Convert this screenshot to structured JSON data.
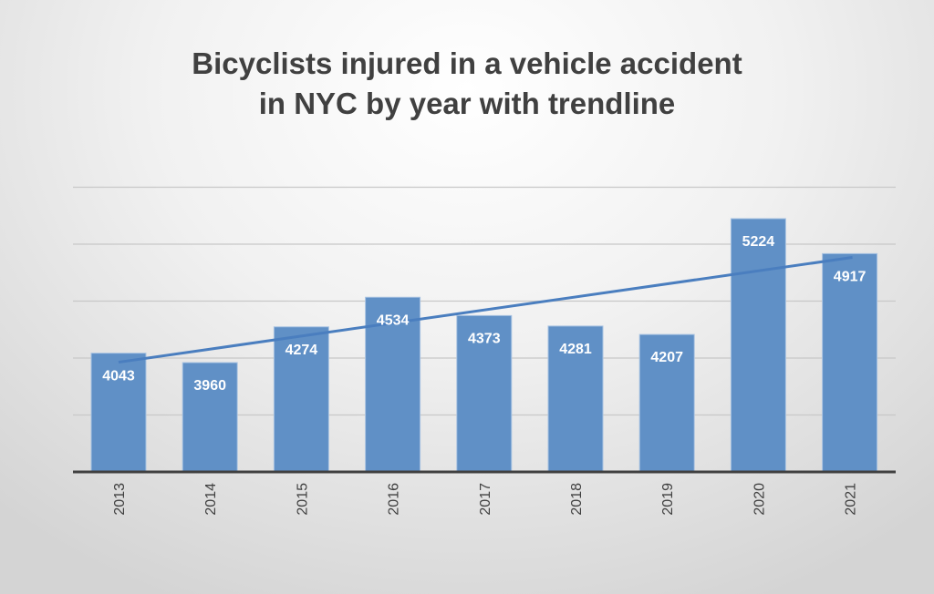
{
  "chart_data": {
    "type": "bar",
    "title_lines": [
      "Bicyclists injured in a vehicle accident",
      "in NYC by year with trendline"
    ],
    "categories": [
      "2013",
      "2014",
      "2015",
      "2016",
      "2017",
      "2018",
      "2019",
      "2020",
      "2021"
    ],
    "values": [
      4043,
      3960,
      4274,
      4534,
      4373,
      4281,
      4207,
      5224,
      4917
    ],
    "xlabel": "",
    "ylabel": "",
    "ylim": [
      3000,
      5500
    ],
    "gridlines": [
      3500,
      4000,
      4500,
      5000,
      5500
    ],
    "y_tick_labels_shown": false,
    "trendline": "linear",
    "legend": "none",
    "colors": {
      "bar": "#6090c6",
      "bar_border": "#a9c3e2",
      "trendline": "#4a7ebf",
      "label": "#ffffff",
      "grid": "#c8c8c8",
      "axis": "#404040",
      "title": "#404040"
    }
  }
}
